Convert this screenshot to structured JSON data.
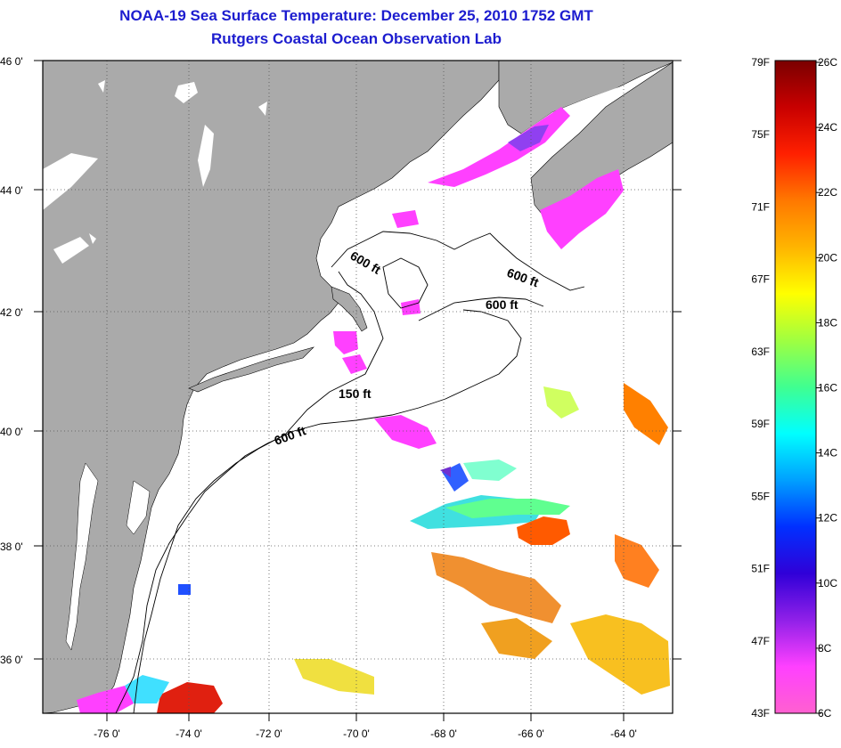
{
  "title": {
    "line1": "NOAA-19 Sea Surface Temperature:  December 25, 2010 1752 GMT",
    "line2": "Rutgers Coastal Ocean Observation Lab"
  },
  "map": {
    "lat_labels": [
      "46 0'",
      "44 0'",
      "42 0'",
      "40 0'",
      "38 0'",
      "36 0'"
    ],
    "lon_labels": [
      "-76 0'",
      "-74 0'",
      "-72 0'",
      "-70 0'",
      "-68 0'",
      "-66 0'",
      "-64 0'"
    ],
    "contour_labels": [
      "600 ft",
      "600 ft",
      "600 ft",
      "150 ft",
      "600 ft"
    ],
    "colors": {
      "land": "#aaaaaa",
      "water": "#ffffff",
      "grid": "#555555"
    }
  },
  "scale": {
    "fahrenheit_labels": [
      "79F",
      "75F",
      "71F",
      "67F",
      "63F",
      "59F",
      "55F",
      "51F",
      "47F",
      "43F"
    ],
    "celsius_labels": [
      "26C",
      "24C",
      "22C",
      "20C",
      "18C",
      "16C",
      "14C",
      "12C",
      "10C",
      "8C",
      "6C"
    ],
    "gradient_colors": [
      "#7a0000",
      "#c80000",
      "#ff2000",
      "#ff7800",
      "#ffb400",
      "#ffff00",
      "#a0ff40",
      "#40ff90",
      "#00ffff",
      "#00a0ff",
      "#0030ff",
      "#3000d8",
      "#9020e8",
      "#ff40ff",
      "#ff60d0"
    ]
  }
}
